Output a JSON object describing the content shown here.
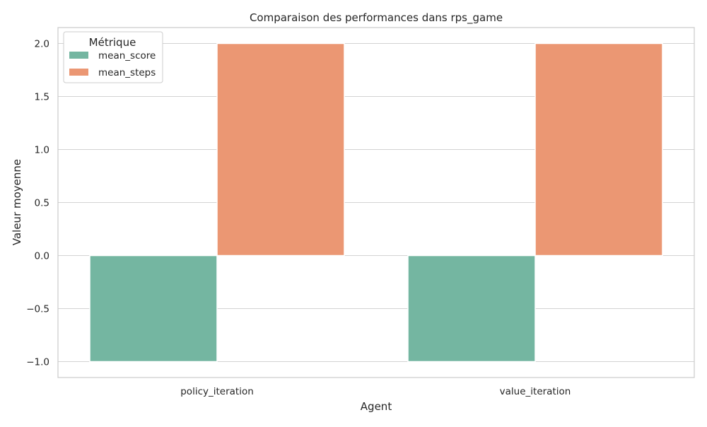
{
  "chart_data": {
    "type": "bar",
    "title": "Comparaison des performances dans rps_game",
    "xlabel": "Agent",
    "ylabel": "Valeur moyenne",
    "categories": [
      "policy_iteration",
      "value_iteration"
    ],
    "series": [
      {
        "name": "mean_score",
        "values": [
          -1.0,
          -1.0
        ],
        "color": "#74b6a1"
      },
      {
        "name": "mean_steps",
        "values": [
          2.0,
          2.0
        ],
        "color": "#eb9773"
      }
    ],
    "ylim": [
      -1.15,
      2.15
    ],
    "yticks": [
      -1.0,
      -0.5,
      0.0,
      0.5,
      1.0,
      1.5,
      2.0
    ],
    "ytick_labels": [
      "−1.0",
      "−0.5",
      "0.0",
      "0.5",
      "1.0",
      "1.5",
      "2.0"
    ],
    "grid": true,
    "legend": {
      "title": "Métrique",
      "placement": "top-left"
    }
  }
}
